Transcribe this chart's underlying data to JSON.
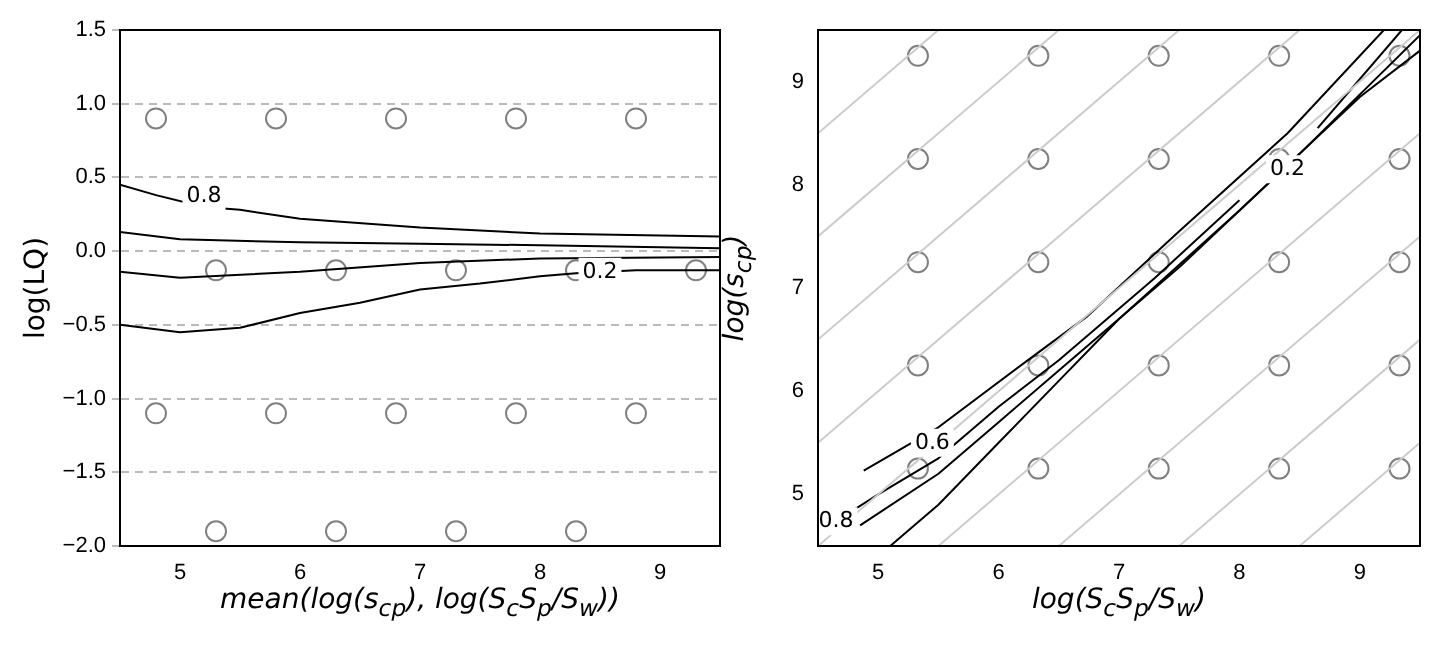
{
  "chart_data": [
    {
      "type": "line",
      "xlabel": "mean(log(s$_{cp}$), log(S$_{c}$S$_{p}$/S$_{w}$))",
      "ylabel": "log(LQ)",
      "xlim": [
        4.5,
        9.5
      ],
      "xticks": [
        5,
        6,
        7,
        8,
        9
      ],
      "ylim": [
        -2.0,
        1.5
      ],
      "yticks": [
        {
          "value": -2,
          "label": "−2.0"
        },
        {
          "value": -1.5,
          "label": "−1.5"
        },
        {
          "value": -1,
          "label": "−1.0"
        },
        {
          "value": -0.5,
          "label": "−0.5"
        },
        {
          "value": 0,
          "label": "0.0"
        },
        {
          "value": 0.5,
          "label": "0.5"
        },
        {
          "value": 1,
          "label": "1.0"
        },
        {
          "value": 1.5,
          "label": "1.5"
        }
      ],
      "grid": "y",
      "line_style": "solid",
      "annotations": [
        {
          "text": "0.8",
          "x": 5.2,
          "y": 0.37
        },
        {
          "text": "0.2",
          "x": 8.5,
          "y": -0.14
        }
      ],
      "series": [
        {
          "type": "line",
          "color": "#000000",
          "x": [
            4.5,
            4.8,
            5.2,
            5.5,
            6,
            7,
            8,
            9.5
          ],
          "values": [
            0.45,
            0.38,
            0.3,
            0.28,
            0.22,
            0.16,
            0.12,
            0.1
          ]
        },
        {
          "type": "line",
          "color": "#000000",
          "x": [
            4.5,
            5,
            6,
            7,
            8,
            9.5
          ],
          "values": [
            0.13,
            0.08,
            0.06,
            0.05,
            0.04,
            0.02
          ]
        },
        {
          "type": "line",
          "color": "#000000",
          "x": [
            4.5,
            5,
            6,
            7,
            8,
            9.5
          ],
          "values": [
            -0.14,
            -0.18,
            -0.14,
            -0.08,
            -0.05,
            -0.04
          ]
        },
        {
          "type": "line",
          "color": "#000000",
          "x": [
            4.5,
            5,
            5.5,
            6,
            6.5,
            7,
            7.5,
            8,
            8.3,
            8.8,
            9.5
          ],
          "values": [
            -0.5,
            -0.55,
            -0.52,
            -0.42,
            -0.35,
            -0.26,
            -0.22,
            -0.17,
            -0.15,
            -0.13,
            -0.13
          ]
        },
        {
          "type": "scatter",
          "color": "#808080",
          "marker": "circle",
          "x": [
            4.8,
            5.8,
            6.8,
            7.8,
            8.8,
            5.3,
            6.3,
            7.3,
            8.3,
            9.3,
            4.8,
            5.8,
            6.8,
            7.8,
            8.8,
            5.3,
            6.3,
            7.3,
            8.3
          ],
          "values": [
            0.9,
            0.9,
            0.9,
            0.9,
            0.9,
            -0.13,
            -0.13,
            -0.13,
            -0.13,
            -0.13,
            -1.1,
            -1.1,
            -1.1,
            -1.1,
            -1.1,
            -1.9,
            -1.9,
            -1.9,
            -1.9
          ]
        }
      ]
    },
    {
      "type": "line",
      "xlabel": "log(S$_{c}$S$_{p}$/S$_{w}$)",
      "ylabel": "log(s$_{cp}$)",
      "xlim": [
        4.5,
        9.5
      ],
      "xticks": [
        5,
        6,
        7,
        8,
        9
      ],
      "ylim": [
        4.5,
        9.5
      ],
      "yticks": [
        5,
        6,
        7,
        8,
        9
      ],
      "grid": false,
      "line_style": "solid",
      "annotations": [
        {
          "text": "0.8",
          "x": 4.65,
          "y": 4.74
        },
        {
          "text": "0.6",
          "x": 5.45,
          "y": 5.5
        },
        {
          "text": "0.2",
          "x": 8.4,
          "y": 8.15
        }
      ],
      "series": [
        {
          "type": "line",
          "color": "#cccccc",
          "x": [
            4.5,
            5.5
          ],
          "values": [
            8.5,
            9.5
          ]
        },
        {
          "type": "line",
          "color": "#cccccc",
          "x": [
            4.5,
            6.5
          ],
          "values": [
            7.5,
            9.5
          ]
        },
        {
          "type": "line",
          "color": "#cccccc",
          "x": [
            4.5,
            7.5
          ],
          "values": [
            6.5,
            9.5
          ]
        },
        {
          "type": "line",
          "color": "#cccccc",
          "x": [
            4.5,
            8.5
          ],
          "values": [
            5.5,
            9.5
          ]
        },
        {
          "type": "line",
          "color": "#cccccc",
          "x": [
            4.5,
            9.5
          ],
          "values": [
            4.5,
            9.5
          ]
        },
        {
          "type": "line",
          "color": "#cccccc",
          "x": [
            5.5,
            9.5
          ],
          "values": [
            4.5,
            8.5
          ]
        },
        {
          "type": "line",
          "color": "#cccccc",
          "x": [
            6.5,
            9.5
          ],
          "values": [
            4.5,
            7.5
          ]
        },
        {
          "type": "line",
          "color": "#cccccc",
          "x": [
            7.5,
            9.5
          ],
          "values": [
            4.5,
            6.5
          ]
        },
        {
          "type": "line",
          "color": "#cccccc",
          "x": [
            8.5,
            9.5
          ],
          "values": [
            4.5,
            5.5
          ]
        },
        {
          "type": "line",
          "color": "#000000",
          "x": [
            4.88,
            5.5,
            6.3,
            6.73,
            7.5,
            8.4,
            9.2
          ],
          "values": [
            5.23,
            5.65,
            6.35,
            6.72,
            7.55,
            8.5,
            9.5
          ]
        },
        {
          "type": "line",
          "color": "#000000",
          "x": [
            4.5,
            5,
            5.5,
            6,
            6.5,
            7.3,
            8.0,
            8.3,
            8.65,
            9.35
          ],
          "values": [
            4.63,
            5,
            5.35,
            5.85,
            6.3,
            7.1,
            7.85,
            null,
            8.55,
            9.5
          ]
        },
        {
          "type": "line",
          "color": "#000000",
          "x": [
            4.85,
            5.5,
            6,
            6.5,
            7.5,
            8.5,
            9.5
          ],
          "values": [
            4.7,
            5.2,
            5.7,
            6.2,
            7.2,
            8.3,
            9.45
          ]
        },
        {
          "type": "line",
          "color": "#000000",
          "x": [
            5.1,
            5.5,
            6,
            6.5,
            7,
            8,
            9,
            9.5
          ],
          "values": [
            4.5,
            4.9,
            5.5,
            6.1,
            6.7,
            7.75,
            8.85,
            9.3
          ]
        },
        {
          "type": "scatter",
          "color": "#808080",
          "marker": "circle",
          "x": [
            5.33,
            6.33,
            7.33,
            8.33,
            9.33,
            5.33,
            6.33,
            7.33,
            8.33,
            9.33,
            5.33,
            6.33,
            7.33,
            8.33,
            9.33,
            5.33,
            6.33,
            7.33,
            8.33,
            9.33,
            5.33,
            6.33,
            7.33,
            8.33,
            9.33
          ],
          "values": [
            9.25,
            9.25,
            9.25,
            9.25,
            9.25,
            8.25,
            8.25,
            8.25,
            8.25,
            8.25,
            7.25,
            7.25,
            7.25,
            7.25,
            7.25,
            6.25,
            6.25,
            6.25,
            6.25,
            6.25,
            5.25,
            5.25,
            5.25,
            5.25,
            5.25
          ]
        }
      ]
    }
  ]
}
